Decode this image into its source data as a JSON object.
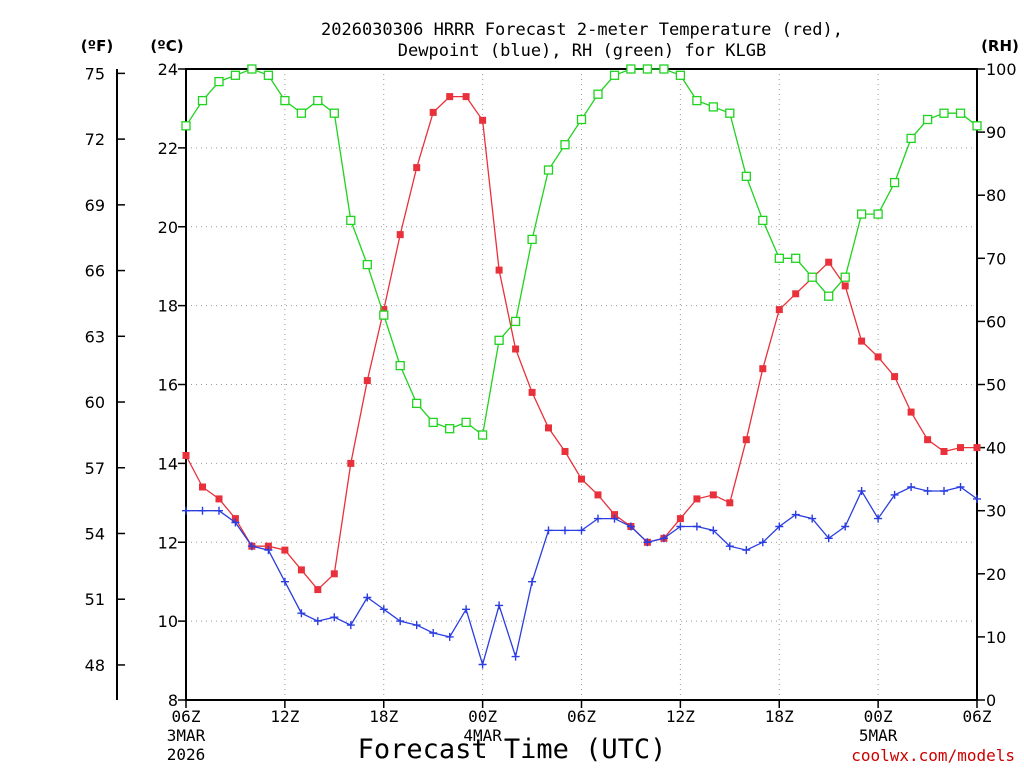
{
  "chart_data": {
    "type": "line",
    "title_line1": "2026030306 HRRR Forecast 2-meter Temperature (red),",
    "title_line2": "Dewpoint (blue), RH (green) for KLGB",
    "xlabel": "Forecast Time (UTC)",
    "credit": "coolwx.com/models",
    "units": {
      "fahrenheit": "(ºF)",
      "celsius": "(ºC)",
      "rh": "(RH)"
    },
    "x_range_hours": [
      0,
      48
    ],
    "x_ticks": [
      {
        "hour": 0,
        "label": "06Z",
        "sub1": "3MAR",
        "sub2": "2026"
      },
      {
        "hour": 6,
        "label": "12Z",
        "sub1": "",
        "sub2": ""
      },
      {
        "hour": 12,
        "label": "18Z",
        "sub1": "",
        "sub2": ""
      },
      {
        "hour": 18,
        "label": "00Z",
        "sub1": "4MAR",
        "sub2": ""
      },
      {
        "hour": 24,
        "label": "06Z",
        "sub1": "",
        "sub2": ""
      },
      {
        "hour": 30,
        "label": "12Z",
        "sub1": "",
        "sub2": ""
      },
      {
        "hour": 36,
        "label": "18Z",
        "sub1": "",
        "sub2": ""
      },
      {
        "hour": 42,
        "label": "00Z",
        "sub1": "5MAR",
        "sub2": ""
      },
      {
        "hour": 48,
        "label": "06Z",
        "sub1": "",
        "sub2": ""
      }
    ],
    "celsius_axis": {
      "range": [
        8,
        24
      ],
      "ticks": [
        8,
        10,
        12,
        14,
        16,
        18,
        20,
        22,
        24
      ]
    },
    "fahrenheit_axis": {
      "ticks": [
        48,
        51,
        54,
        57,
        60,
        63,
        66,
        69,
        72,
        75
      ]
    },
    "rh_axis": {
      "range": [
        0,
        100
      ],
      "ticks": [
        0,
        10,
        20,
        30,
        40,
        50,
        60,
        70,
        80,
        90,
        100
      ]
    },
    "colors": {
      "temperature": "#e8313a",
      "dewpoint": "#2a3de0",
      "rh": "#1fd31f",
      "grid": "#999999"
    },
    "series": [
      {
        "name": "Temperature",
        "axis": "celsius",
        "values": [
          14.2,
          13.4,
          13.1,
          12.6,
          11.9,
          11.9,
          11.8,
          11.3,
          10.8,
          11.2,
          14.0,
          16.1,
          17.9,
          19.8,
          21.5,
          22.9,
          23.3,
          23.3,
          22.7,
          18.9,
          16.9,
          15.8,
          14.9,
          14.3,
          13.6,
          13.2,
          12.7,
          12.4,
          12.0,
          12.1,
          12.6,
          13.1,
          13.2,
          13.0,
          14.6,
          16.4,
          17.9,
          18.3,
          18.7,
          19.1,
          18.5,
          17.1,
          16.7,
          16.2,
          15.3,
          14.6,
          14.3,
          14.4,
          14.4
        ]
      },
      {
        "name": "Dewpoint",
        "axis": "celsius",
        "values": [
          12.8,
          12.8,
          12.8,
          12.5,
          11.9,
          11.8,
          11.0,
          10.2,
          10.0,
          10.1,
          9.9,
          10.6,
          10.3,
          10.0,
          9.9,
          9.7,
          9.6,
          10.3,
          8.9,
          10.4,
          9.1,
          11.0,
          12.3,
          12.3,
          12.3,
          12.6,
          12.6,
          12.4,
          12.0,
          12.1,
          12.4,
          12.4,
          12.3,
          11.9,
          11.8,
          12.0,
          12.4,
          12.7,
          12.6,
          12.1,
          12.4,
          13.3,
          12.6,
          13.2,
          13.4,
          13.3,
          13.3,
          13.4,
          13.1
        ]
      },
      {
        "name": "RH",
        "axis": "rh",
        "values": [
          91.0,
          95.0,
          98.0,
          99.0,
          100.0,
          99.0,
          95.0,
          93.0,
          95.0,
          93.0,
          76.0,
          69.0,
          61.0,
          53.0,
          47.0,
          44.0,
          43.0,
          44.0,
          42.0,
          57.0,
          60.0,
          73.0,
          84.0,
          88.0,
          92.0,
          96.0,
          99.0,
          100.0,
          100.0,
          100.0,
          99.0,
          95.0,
          94.0,
          93.0,
          83.0,
          76.0,
          70.0,
          70.0,
          67.0,
          64.0,
          67.0,
          77.0,
          77.0,
          82.0,
          89.0,
          92.0,
          93.0,
          93.0,
          91.0
        ]
      }
    ]
  }
}
